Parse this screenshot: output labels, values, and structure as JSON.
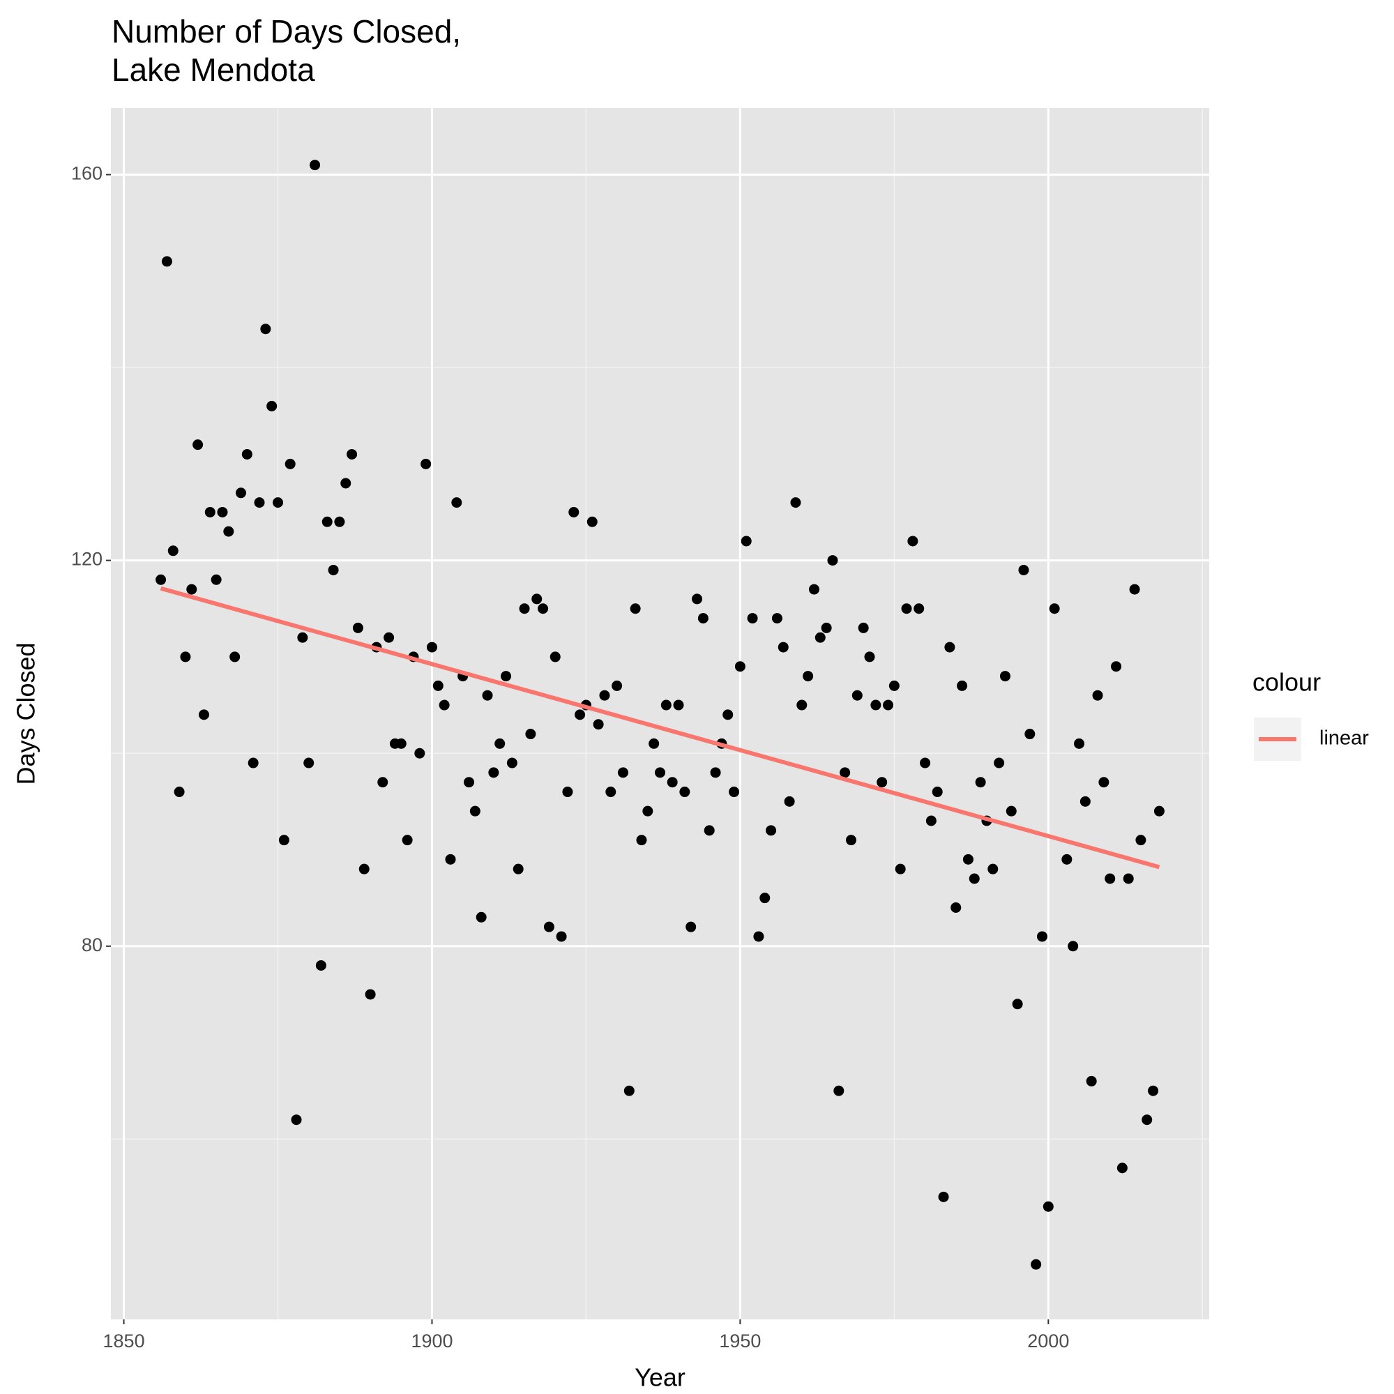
{
  "chart_data": {
    "type": "scatter",
    "title": "Number of Days Closed,\nLake Mendota",
    "x_label": "Year",
    "y_label": "Days Closed",
    "x": [
      1856,
      1857,
      1858,
      1859,
      1860,
      1861,
      1862,
      1863,
      1864,
      1865,
      1866,
      1867,
      1868,
      1869,
      1870,
      1871,
      1872,
      1873,
      1874,
      1875,
      1876,
      1877,
      1878,
      1879,
      1880,
      1881,
      1882,
      1883,
      1884,
      1885,
      1886,
      1887,
      1888,
      1889,
      1890,
      1891,
      1892,
      1893,
      1894,
      1895,
      1896,
      1897,
      1898,
      1899,
      1900,
      1901,
      1902,
      1903,
      1904,
      1905,
      1906,
      1907,
      1908,
      1909,
      1910,
      1911,
      1912,
      1913,
      1914,
      1915,
      1916,
      1917,
      1918,
      1919,
      1920,
      1921,
      1922,
      1923,
      1924,
      1925,
      1926,
      1927,
      1928,
      1929,
      1930,
      1931,
      1932,
      1933,
      1934,
      1935,
      1936,
      1937,
      1938,
      1939,
      1940,
      1941,
      1942,
      1943,
      1944,
      1945,
      1946,
      1947,
      1948,
      1949,
      1950,
      1951,
      1952,
      1953,
      1954,
      1955,
      1956,
      1957,
      1958,
      1959,
      1960,
      1961,
      1962,
      1963,
      1964,
      1965,
      1966,
      1967,
      1968,
      1969,
      1970,
      1971,
      1972,
      1973,
      1974,
      1975,
      1976,
      1977,
      1978,
      1979,
      1980,
      1981,
      1982,
      1983,
      1984,
      1985,
      1986,
      1987,
      1988,
      1989,
      1990,
      1991,
      1992,
      1993,
      1994,
      1995,
      1996,
      1997,
      1998,
      1999,
      2000,
      2001,
      2003,
      2004,
      2005,
      2006,
      2007,
      2008,
      2009,
      2010,
      2011,
      2012,
      2013,
      2014,
      2015,
      2016,
      2017,
      2018
    ],
    "values": [
      118,
      151,
      121,
      96,
      110,
      117,
      132,
      104,
      125,
      118,
      125,
      123,
      110,
      127,
      131,
      99,
      126,
      144,
      136,
      126,
      91,
      130,
      62,
      112,
      99,
      161,
      78,
      124,
      119,
      124,
      128,
      131,
      113,
      88,
      75,
      111,
      97,
      112,
      101,
      101,
      91,
      110,
      100,
      130,
      111,
      107,
      105,
      89,
      126,
      108,
      97,
      94,
      83,
      106,
      98,
      101,
      108,
      99,
      88,
      115,
      102,
      116,
      115,
      82,
      110,
      81,
      96,
      125,
      104,
      105,
      124,
      103,
      106,
      96,
      107,
      98,
      65,
      115,
      91,
      94,
      101,
      98,
      105,
      97,
      105,
      96,
      82,
      116,
      114,
      92,
      98,
      101,
      104,
      96,
      109,
      122,
      114,
      81,
      85,
      92,
      114,
      111,
      95,
      126,
      105,
      108,
      117,
      112,
      113,
      120,
      65,
      98,
      91,
      106,
      113,
      110,
      105,
      97,
      105,
      107,
      88,
      115,
      122,
      115,
      99,
      93,
      96,
      54,
      111,
      84,
      107,
      89,
      87,
      97,
      93,
      88,
      99,
      108,
      94,
      74,
      119,
      102,
      47,
      81,
      53,
      115,
      89,
      80,
      101,
      95,
      66,
      106,
      97,
      87,
      109,
      57,
      87,
      117,
      91,
      62,
      65,
      94
    ],
    "color": "#000000",
    "trend": {
      "name": "linear",
      "color": "#f8766d",
      "x": [
        1856,
        2018
      ],
      "values": [
        117.1,
        88.2
      ]
    },
    "legend_title": "colour",
    "xlim": [
      1847.9,
      2026.1
    ],
    "xticks": [
      1850,
      1900,
      1950,
      2000
    ],
    "xminor": [
      1875,
      1925,
      1975,
      2025
    ],
    "ylim": [
      41.3,
      166.9
    ],
    "yticks": [
      80,
      120,
      160
    ],
    "yminor": [
      60,
      100,
      140
    ],
    "grid": true,
    "legend_position": "right"
  }
}
